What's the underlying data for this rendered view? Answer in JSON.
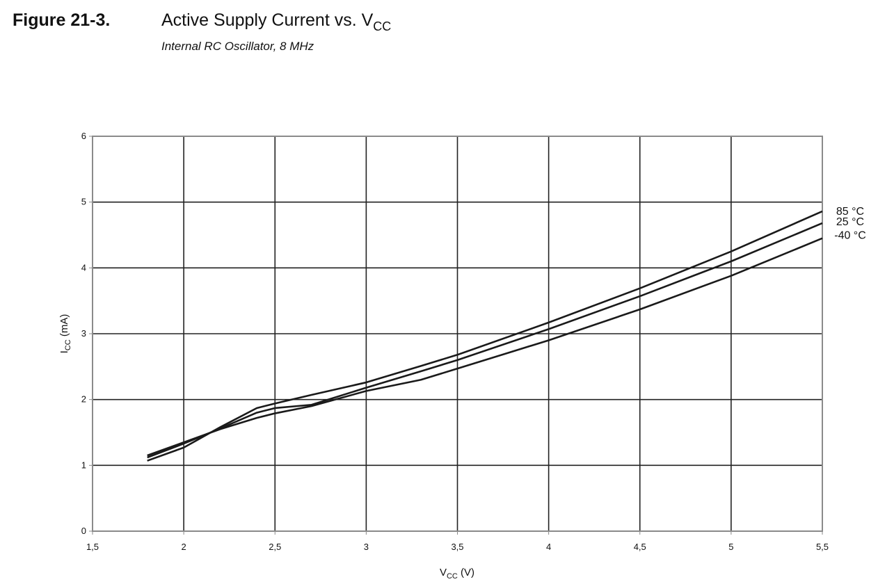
{
  "figure_label": "Figure 21-3.",
  "chart_data": {
    "type": "line",
    "title": [
      "Active Supply Current vs. V",
      "CC"
    ],
    "subtitle": "Internal RC Oscillator, 8 MHz",
    "x_label": [
      "V",
      "CC",
      " (V)"
    ],
    "y_label": [
      "I",
      "CC",
      " (mA)"
    ],
    "x": [
      1.8,
      2,
      2.2,
      2.4,
      2.5,
      2.7,
      3,
      3.3,
      3.5,
      4,
      4.5,
      5,
      5.5
    ],
    "series": [
      {
        "name": "85 °C",
        "color": "#1a1a1a",
        "values": [
          1.07,
          1.27,
          1.58,
          1.87,
          1.94,
          2.07,
          2.26,
          2.51,
          2.68,
          3.17,
          3.69,
          4.25,
          4.86
        ]
      },
      {
        "name": "25 °C",
        "color": "#1a1a1a",
        "values": [
          1.12,
          1.33,
          1.56,
          1.8,
          1.87,
          1.92,
          2.18,
          2.43,
          2.6,
          3.07,
          3.57,
          4.1,
          4.68
        ]
      },
      {
        "name": "-40 °C",
        "color": "#1a1a1a",
        "values": [
          1.15,
          1.35,
          1.55,
          1.72,
          1.79,
          1.9,
          2.13,
          2.3,
          2.47,
          2.9,
          3.37,
          3.88,
          4.45
        ]
      }
    ],
    "xlim": [
      1.5,
      5.5
    ],
    "xticks": [
      {
        "value": 1.5,
        "label": "1,5"
      },
      2,
      {
        "value": 2.5,
        "label": "2,5"
      },
      3,
      {
        "value": 3.5,
        "label": "3,5"
      },
      4,
      {
        "value": 4.5,
        "label": "4,5"
      },
      5,
      {
        "value": 5.5,
        "label": "5,5"
      }
    ],
    "ylim": [
      0,
      6
    ],
    "yticks": [
      0,
      1,
      2,
      3,
      4,
      5,
      6
    ],
    "grid": true
  }
}
